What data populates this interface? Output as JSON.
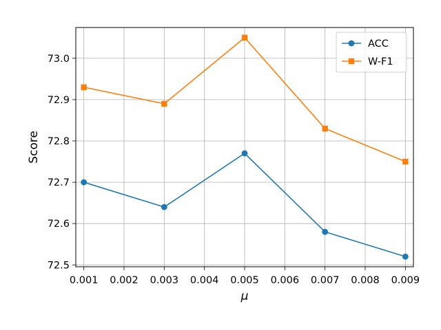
{
  "chart_data": {
    "type": "line",
    "title": "",
    "xlabel": "μ",
    "ylabel": "Score",
    "x": [
      0.001,
      0.003,
      0.005,
      0.007,
      0.009
    ],
    "xticks": [
      "0.001",
      "0.002",
      "0.003",
      "0.004",
      "0.005",
      "0.006",
      "0.007",
      "0.008",
      "0.009"
    ],
    "xtick_values": [
      0.001,
      0.002,
      0.003,
      0.004,
      0.005,
      0.006,
      0.007,
      0.008,
      0.009
    ],
    "yticks": [
      "72.5",
      "72.6",
      "72.7",
      "72.8",
      "72.9",
      "73.0"
    ],
    "ytick_values": [
      72.5,
      72.6,
      72.7,
      72.8,
      72.9,
      73.0
    ],
    "xlim": [
      0.0008,
      0.0092
    ],
    "ylim": [
      72.4955,
      73.0745
    ],
    "grid": true,
    "legend_position": "top-right",
    "series": [
      {
        "name": "ACC",
        "color": "#1f77b4",
        "marker": "circle",
        "values": [
          72.7,
          72.64,
          72.77,
          72.58,
          72.52
        ]
      },
      {
        "name": "W-F1",
        "color": "#ff7f0e",
        "marker": "square",
        "values": [
          72.93,
          72.89,
          73.05,
          72.83,
          72.75
        ]
      }
    ]
  }
}
